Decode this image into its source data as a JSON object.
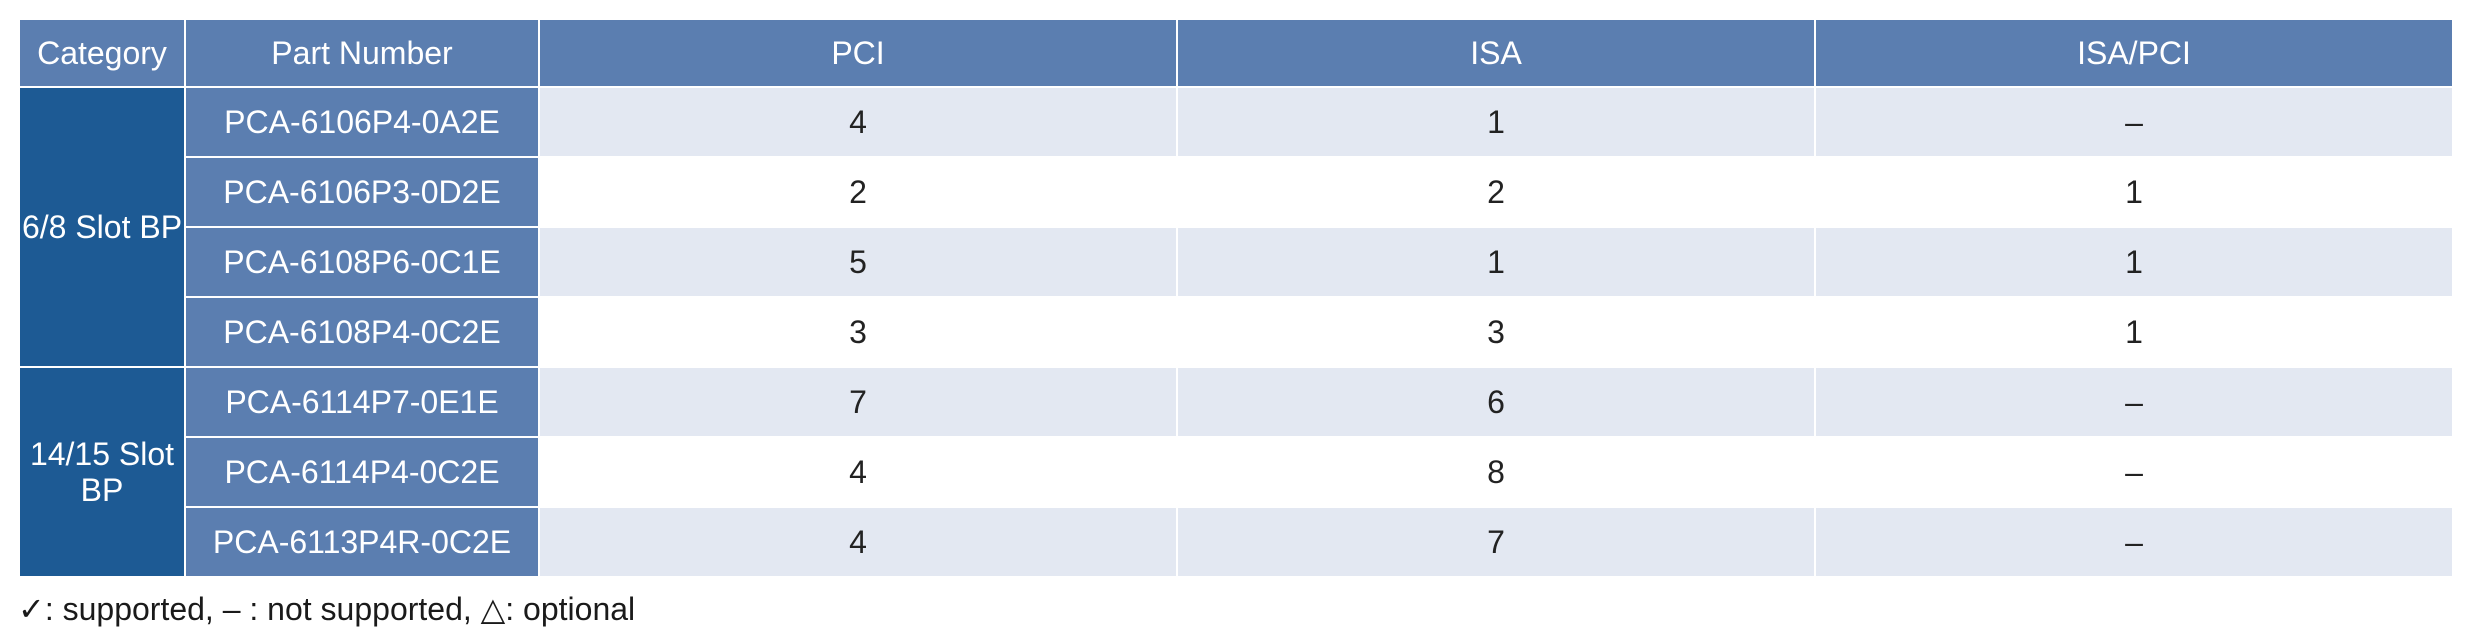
{
  "table": {
    "headers": [
      "Category",
      "Part Number",
      "PCI",
      "ISA",
      "ISA/PCI"
    ],
    "groups": [
      {
        "category": "6/8 Slot BP",
        "rows": [
          {
            "part": "PCA-6106P4-0A2E",
            "pci": "4",
            "isa": "1",
            "isa_pci": "–"
          },
          {
            "part": "PCA-6106P3-0D2E",
            "pci": "2",
            "isa": "2",
            "isa_pci": "1"
          },
          {
            "part": "PCA-6108P6-0C1E",
            "pci": "5",
            "isa": "1",
            "isa_pci": "1"
          },
          {
            "part": "PCA-6108P4-0C2E",
            "pci": "3",
            "isa": "3",
            "isa_pci": "1"
          }
        ]
      },
      {
        "category": "14/15 Slot BP",
        "rows": [
          {
            "part": "PCA-6114P7-0E1E",
            "pci": "7",
            "isa": "6",
            "isa_pci": "–"
          },
          {
            "part": "PCA-6114P4-0C2E",
            "pci": "4",
            "isa": "8",
            "isa_pci": "–"
          },
          {
            "part": "PCA-6113P4R-0C2E",
            "pci": "4",
            "isa": "7",
            "isa_pci": "–"
          }
        ]
      }
    ]
  },
  "legend": {
    "text": "✓: supported, – : not supported, △: optional"
  },
  "colors": {
    "header_bg": "#5b7eb0",
    "category_bg": "#1d5a94",
    "part_bg": "#5b7eb0",
    "row_alt_bg": "#e3e8f2",
    "row_bg": "#ffffff"
  }
}
